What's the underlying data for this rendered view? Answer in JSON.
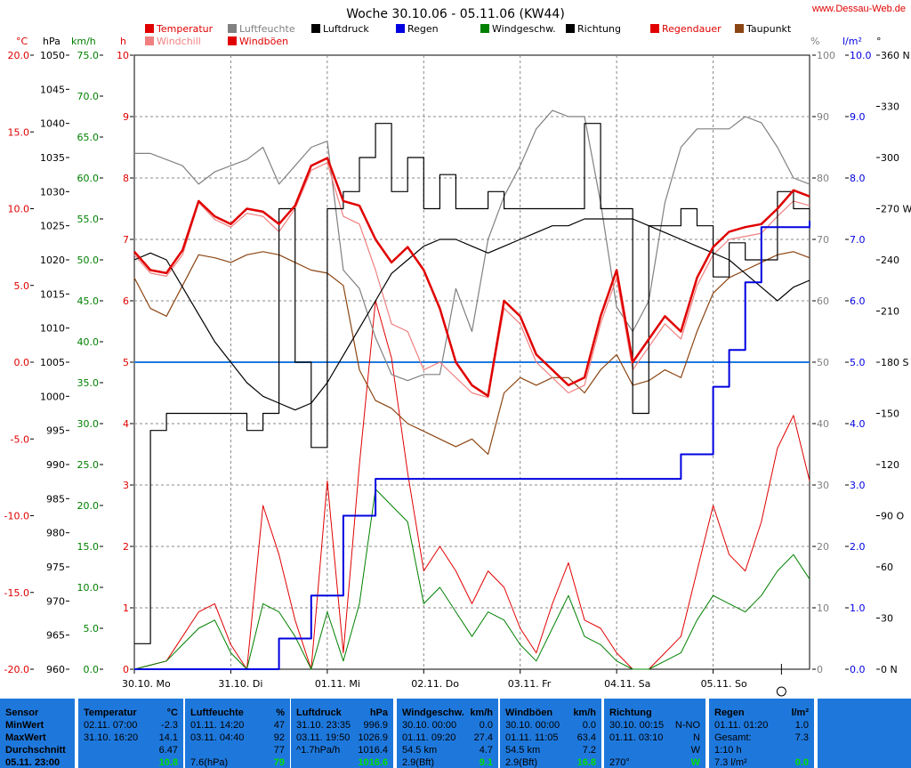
{
  "title": "Woche 30.10.06 - 05.11.06 (KW44)",
  "website": "www.Dessau-Web.de",
  "legend": [
    {
      "label": "Temperatur",
      "color": "#e00000"
    },
    {
      "label": "Windchill",
      "color": "#f08080"
    },
    {
      "label": "Luftfeuchte",
      "color": "#808080"
    },
    {
      "label": "Windböen",
      "color": "#e00000"
    },
    {
      "label": "Luftdruck",
      "color": "#000000"
    },
    {
      "label": "Regen",
      "color": "#0000e0"
    },
    {
      "label": "Windgeschw.",
      "color": "#008000"
    },
    {
      "label": "Richtung",
      "color": "#000000"
    },
    {
      "label": "Regendauer",
      "color": "#e00000"
    },
    {
      "label": "Taupunkt",
      "color": "#8b4513"
    }
  ],
  "axes": {
    "temp": {
      "unit": "°C",
      "ticks": [
        "20.0",
        "15.0",
        "10.0",
        "5.0",
        "0.0",
        "-5.0",
        "-10.0",
        "-15.0",
        "-20.0"
      ],
      "color": "#e00000"
    },
    "pressure": {
      "unit": "hPa",
      "ticks": [
        "1050",
        "1045",
        "1040",
        "1035",
        "1030",
        "1025",
        "1020",
        "1015",
        "1010",
        "1005",
        "1000",
        "995",
        "990",
        "985",
        "980",
        "975",
        "970",
        "965",
        "960"
      ]
    },
    "wind": {
      "unit": "km/h",
      "ticks": [
        "75.0",
        "70.0",
        "65.0",
        "60.0",
        "55.0",
        "50.0",
        "45.0",
        "40.0",
        "35.0",
        "30.0",
        "25.0",
        "20.0",
        "15.0",
        "10.0",
        "5.0",
        "0.0"
      ],
      "color": "#008000"
    },
    "hours": {
      "unit": "h",
      "ticks": [
        "10",
        "9",
        "8",
        "7",
        "6",
        "5",
        "4",
        "3",
        "2",
        "1",
        "0"
      ],
      "color": "#e00000"
    },
    "humidity": {
      "unit": "%",
      "ticks": [
        "100",
        "90",
        "80",
        "70",
        "60",
        "50",
        "40",
        "30",
        "20",
        "10",
        "0"
      ],
      "color": "#808080"
    },
    "rain": {
      "unit": "l/m²",
      "ticks": [
        "10.0",
        "9.0",
        "8.0",
        "7.0",
        "6.0",
        "5.0",
        "4.0",
        "3.0",
        "2.0",
        "1.0",
        "0.0"
      ],
      "color": "#0000e0"
    },
    "direction": {
      "unit": "°",
      "ticks": [
        "360 N",
        "330",
        "300",
        "270 W",
        "240",
        "210",
        "180 S",
        "150",
        "120",
        "90 O",
        "60",
        "30",
        "0 N"
      ]
    }
  },
  "days": [
    "30.10. Mo",
    "31.10. Di",
    "01.11. Mi",
    "02.11. Do",
    "03.11. Fr",
    "04.11. Sa",
    "05.11. So"
  ],
  "chart_data": {
    "type": "line",
    "title": "Woche 30.10.06 - 05.11.06 (KW44)",
    "x": [
      0,
      4,
      8,
      12,
      16,
      20,
      24,
      28,
      32,
      36,
      40,
      44,
      48,
      52,
      56,
      60,
      64,
      68,
      72,
      76,
      80,
      84,
      88,
      92,
      96,
      100,
      104,
      108,
      112,
      116,
      120,
      124,
      128,
      132,
      136,
      140,
      144,
      148,
      152,
      156,
      160,
      164,
      168
    ],
    "x_unit": "hours since 30.10.06 00:00",
    "ylim_temp": [
      -20,
      20
    ],
    "series": [
      {
        "name": "Temperatur",
        "axis": "temp",
        "values": [
          7.2,
          6.0,
          5.8,
          7.3,
          10.5,
          9.5,
          9.0,
          10.0,
          9.8,
          9.0,
          10.2,
          12.8,
          13.3,
          10.5,
          10.2,
          8.0,
          6.5,
          7.5,
          6.0,
          3.5,
          0.0,
          -1.5,
          -2.2,
          4.0,
          3.0,
          0.5,
          -0.5,
          -1.5,
          -1.0,
          3.0,
          6.0,
          0.0,
          1.5,
          3.0,
          2.0,
          5.5,
          7.5,
          8.5,
          8.8,
          9.0,
          10.0,
          11.2,
          10.8
        ]
      },
      {
        "name": "Windchill",
        "axis": "temp",
        "values": [
          7.0,
          5.8,
          5.6,
          7.0,
          10.4,
          9.3,
          8.8,
          9.7,
          9.5,
          8.5,
          10.0,
          12.5,
          13.0,
          9.5,
          9.0,
          6.0,
          2.5,
          2.0,
          -0.5,
          0.0,
          -1.0,
          -2.0,
          -2.3,
          3.5,
          2.5,
          0.0,
          -1.0,
          -2.0,
          -1.5,
          2.5,
          5.5,
          -0.5,
          1.0,
          2.5,
          1.5,
          5.0,
          7.0,
          8.0,
          8.2,
          8.4,
          9.5,
          10.5,
          10.2
        ]
      },
      {
        "name": "Taupunkt",
        "axis": "temp",
        "values": [
          5.5,
          3.5,
          3.0,
          5.0,
          7.0,
          6.8,
          6.5,
          7.0,
          7.2,
          7.0,
          6.5,
          6.0,
          5.8,
          5.0,
          -0.5,
          -2.5,
          -3.0,
          -4.0,
          -4.5,
          -5.0,
          -5.5,
          -5.0,
          -6.0,
          -2.0,
          -1.0,
          -1.5,
          -1.0,
          -1.0,
          -2.0,
          -0.5,
          0.5,
          -1.5,
          -1.2,
          -0.5,
          -1.0,
          2.0,
          4.5,
          5.5,
          6.0,
          6.5,
          7.0,
          7.2,
          6.8
        ]
      },
      {
        "name": "Luftfeuchte",
        "axis": "humidity",
        "values": [
          84,
          84,
          83,
          82,
          79,
          81,
          82,
          83,
          85,
          79,
          82,
          85,
          86,
          65,
          62,
          54,
          48,
          47,
          48,
          48,
          62,
          55,
          70,
          77,
          82,
          88,
          91,
          90,
          90,
          76,
          59,
          55,
          60,
          76,
          85,
          88,
          88,
          88,
          90,
          89,
          85,
          80,
          79
        ]
      },
      {
        "name": "Luftdruck",
        "axis": "pressure",
        "values": [
          1020,
          1021,
          1020,
          1016,
          1012,
          1008,
          1005,
          1002,
          1000,
          999,
          998,
          999,
          1002,
          1006,
          1010,
          1014,
          1018,
          1020,
          1022,
          1023,
          1023,
          1022,
          1021,
          1022,
          1023,
          1024,
          1025,
          1025,
          1026,
          1026,
          1026,
          1026,
          1025,
          1024,
          1023,
          1022,
          1021,
          1020,
          1018,
          1016,
          1014,
          1016,
          1017
        ]
      },
      {
        "name": "Regen",
        "axis": "rain",
        "values": [
          0.0,
          0.0,
          0.0,
          0.0,
          0.0,
          0.0,
          0.0,
          0.0,
          0.0,
          0.5,
          0.5,
          1.2,
          1.2,
          2.5,
          2.5,
          3.1,
          3.1,
          3.1,
          3.1,
          3.1,
          3.1,
          3.1,
          3.1,
          3.1,
          3.1,
          3.1,
          3.1,
          3.1,
          3.1,
          3.1,
          3.1,
          3.1,
          3.1,
          3.1,
          3.5,
          3.5,
          4.6,
          5.2,
          6.3,
          7.2,
          7.2,
          7.2,
          7.3
        ]
      },
      {
        "name": "Windgeschw.",
        "axis": "wind",
        "values": [
          0.0,
          0.5,
          1.0,
          3.0,
          5.0,
          6.0,
          2.0,
          0.0,
          8.0,
          7.0,
          4.0,
          0.0,
          7.0,
          1.0,
          8.0,
          22.0,
          20.0,
          18.0,
          8.0,
          10.0,
          7.0,
          4.0,
          7.0,
          6.0,
          3.0,
          1.0,
          5.0,
          9.0,
          4.0,
          3.0,
          1.0,
          0.0,
          0.0,
          1.0,
          2.0,
          6.0,
          9.0,
          8.0,
          7.0,
          9.0,
          12.0,
          14.0,
          11.0
        ]
      },
      {
        "name": "Windböen",
        "axis": "wind",
        "values": [
          0.0,
          0.5,
          1.0,
          4.0,
          7.0,
          8.0,
          3.0,
          0.0,
          20.0,
          14.0,
          6.0,
          0.0,
          23.0,
          2.0,
          25.0,
          45.0,
          38.0,
          24.0,
          12.0,
          15.0,
          12.0,
          8.0,
          12.0,
          10.0,
          5.0,
          2.0,
          8.0,
          13.0,
          6.0,
          5.0,
          2.0,
          0.0,
          0.0,
          2.0,
          4.0,
          12.0,
          20.0,
          14.0,
          12.0,
          18.0,
          27.0,
          31.0,
          23.0
        ]
      },
      {
        "name": "Richtung",
        "axis": "direction",
        "values": [
          15,
          140,
          150,
          150,
          150,
          150,
          150,
          140,
          150,
          270,
          180,
          130,
          270,
          280,
          300,
          320,
          280,
          300,
          270,
          290,
          270,
          270,
          280,
          270,
          270,
          270,
          270,
          270,
          320,
          270,
          270,
          150,
          260,
          260,
          270,
          260,
          230,
          250,
          240,
          240,
          280,
          270,
          260
        ]
      }
    ]
  },
  "stats": {
    "row_labels": [
      "Sensor",
      "MinWert",
      "MaxWert",
      "Durchschnitt",
      "05.11. 23:00"
    ],
    "panels": [
      {
        "title": "Temperatur",
        "unit": "°C",
        "rows": [
          [
            "02.11. 07:00",
            "-2.3"
          ],
          [
            "31.10. 16:20",
            "14.1"
          ],
          [
            "",
            "6.47"
          ],
          [
            "",
            "10.8"
          ]
        ]
      },
      {
        "title": "Luftfeuchte",
        "unit": "%",
        "rows": [
          [
            "01.11. 14:20",
            "47"
          ],
          [
            "03.11. 04:40",
            "92"
          ],
          [
            "",
            "77"
          ],
          [
            "7.6(hPa)",
            "79"
          ]
        ]
      },
      {
        "title": "Luftdruck",
        "unit": "hPa",
        "rows": [
          [
            "31.10. 23:35",
            "996.9"
          ],
          [
            "03.11. 19:50",
            "1026.9"
          ],
          [
            "^1.7hPa/h",
            "1016.4"
          ],
          [
            "",
            "1016.6"
          ]
        ]
      },
      {
        "title": "Windgeschw.",
        "unit": "km/h",
        "rows": [
          [
            "30.10. 00:00",
            "0.0"
          ],
          [
            "01.11. 09:20",
            "27.4"
          ],
          [
            "54.5 km",
            "4.7"
          ],
          [
            "2.9(Bft)",
            "9.1"
          ]
        ]
      },
      {
        "title": "Windböen",
        "unit": "km/h",
        "rows": [
          [
            "30.10. 00:00",
            "0.0"
          ],
          [
            "01.11. 11:05",
            "63.4"
          ],
          [
            "54.5 km",
            "7.2"
          ],
          [
            "2.9(Bft)",
            "16.8"
          ]
        ]
      },
      {
        "title": "Richtung",
        "unit": "",
        "rows": [
          [
            "30.10. 00:15",
            "N-NO"
          ],
          [
            "01.11. 03:10",
            "N"
          ],
          [
            "",
            "W"
          ],
          [
            "270°",
            "W"
          ]
        ]
      },
      {
        "title": "Regen",
        "unit": "l/m²",
        "rows": [
          [
            "01.11. 01:20",
            "1.0"
          ],
          [
            "Gesamt:",
            "7.3"
          ],
          [
            "1:10 h",
            ""
          ],
          [
            "7.3 l/m²",
            "0.0"
          ]
        ]
      }
    ]
  }
}
